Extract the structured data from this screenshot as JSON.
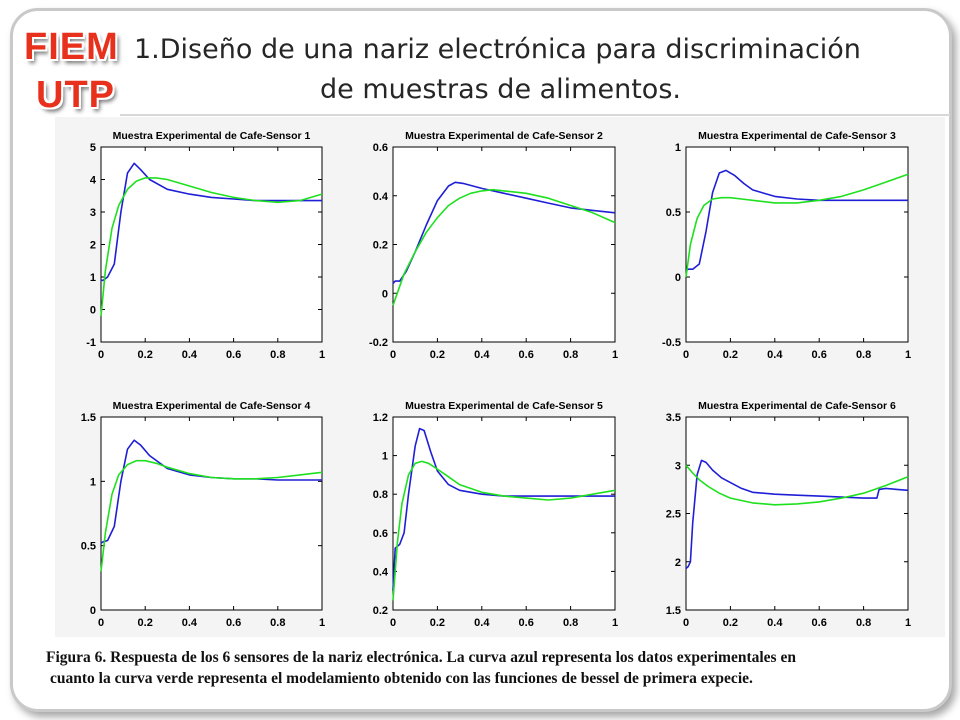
{
  "logo": {
    "line1": "FIEM",
    "line2": "UTP"
  },
  "title": {
    "line1": "1.Diseño de una nariz electrónica para discriminación",
    "line2": "de muestras de alimentos."
  },
  "caption": {
    "line1": "Figura 6. Respuesta de los 6 sensores de la nariz electrónica. La curva  azul representa los datos experimentales en",
    "line2": "cuanto la curva verde representa el modelamiento obtenido con las funciones de bessel de primera expecie."
  },
  "colors": {
    "experimental": "#1f1fd6",
    "model": "#1fe01f",
    "title_logo": "#e8311d"
  },
  "chart_data": [
    {
      "type": "line",
      "title": "Muestra Experimental de Cafe-Sensor 1",
      "xlim": [
        0,
        1
      ],
      "ylim": [
        -1,
        5
      ],
      "xticks": [
        "0",
        "0.2",
        "0.4",
        "0.6",
        "0.8",
        "1"
      ],
      "yticks": [
        "-1",
        "0",
        "1",
        "2",
        "3",
        "4",
        "5"
      ],
      "series": [
        {
          "color": "blue",
          "x": [
            0,
            0.01,
            0.03,
            0.06,
            0.09,
            0.12,
            0.15,
            0.18,
            0.22,
            0.3,
            0.4,
            0.5,
            0.6,
            0.7,
            0.8,
            0.9,
            1.0
          ],
          "y": [
            0.9,
            0.9,
            1.0,
            1.4,
            3.0,
            4.2,
            4.5,
            4.3,
            4.0,
            3.7,
            3.55,
            3.45,
            3.4,
            3.35,
            3.35,
            3.35,
            3.35
          ]
        },
        {
          "color": "green",
          "x": [
            0,
            0.02,
            0.05,
            0.08,
            0.12,
            0.16,
            0.2,
            0.25,
            0.3,
            0.4,
            0.5,
            0.6,
            0.7,
            0.8,
            0.9,
            1.0
          ],
          "y": [
            -0.2,
            1.2,
            2.5,
            3.2,
            3.7,
            3.95,
            4.05,
            4.05,
            4.0,
            3.8,
            3.6,
            3.45,
            3.35,
            3.3,
            3.35,
            3.55
          ]
        }
      ]
    },
    {
      "type": "line",
      "title": "Muestra Experimental de Cafe-Sensor 2",
      "xlim": [
        0,
        1
      ],
      "ylim": [
        -0.2,
        0.6
      ],
      "xticks": [
        "0",
        "0.2",
        "0.4",
        "0.6",
        "0.8",
        "1"
      ],
      "yticks": [
        "-0.2",
        "0",
        "0.2",
        "0.4",
        "0.6"
      ],
      "series": [
        {
          "color": "blue",
          "x": [
            0,
            0.01,
            0.03,
            0.06,
            0.1,
            0.15,
            0.2,
            0.25,
            0.28,
            0.32,
            0.4,
            0.5,
            0.6,
            0.7,
            0.8,
            0.9,
            1.0
          ],
          "y": [
            0.04,
            0.05,
            0.05,
            0.09,
            0.17,
            0.28,
            0.38,
            0.44,
            0.455,
            0.45,
            0.43,
            0.41,
            0.39,
            0.37,
            0.35,
            0.34,
            0.33
          ]
        },
        {
          "color": "green",
          "x": [
            0,
            0.05,
            0.1,
            0.15,
            0.2,
            0.25,
            0.3,
            0.35,
            0.4,
            0.45,
            0.5,
            0.6,
            0.7,
            0.8,
            0.9,
            1.0
          ],
          "y": [
            -0.05,
            0.08,
            0.17,
            0.25,
            0.31,
            0.36,
            0.39,
            0.41,
            0.42,
            0.425,
            0.42,
            0.41,
            0.39,
            0.36,
            0.33,
            0.29
          ]
        }
      ]
    },
    {
      "type": "line",
      "title": "Muestra Experimental de Cafe-Sensor 3",
      "xlim": [
        0,
        1
      ],
      "ylim": [
        -0.5,
        1
      ],
      "xticks": [
        "0",
        "0.2",
        "0.4",
        "0.6",
        "0.8",
        "1"
      ],
      "yticks": [
        "-0.5",
        "0",
        "0.5",
        "1"
      ],
      "series": [
        {
          "color": "blue",
          "x": [
            0,
            0.01,
            0.03,
            0.06,
            0.09,
            0.12,
            0.15,
            0.18,
            0.22,
            0.26,
            0.3,
            0.4,
            0.5,
            0.6,
            0.7,
            0.8,
            0.9,
            1.0
          ],
          "y": [
            0.05,
            0.06,
            0.06,
            0.1,
            0.35,
            0.65,
            0.8,
            0.82,
            0.78,
            0.72,
            0.67,
            0.62,
            0.6,
            0.59,
            0.59,
            0.59,
            0.59,
            0.59
          ]
        },
        {
          "color": "green",
          "x": [
            0,
            0.02,
            0.05,
            0.08,
            0.12,
            0.16,
            0.2,
            0.25,
            0.3,
            0.4,
            0.5,
            0.6,
            0.7,
            0.8,
            0.9,
            1.0
          ],
          "y": [
            0.0,
            0.25,
            0.45,
            0.55,
            0.6,
            0.61,
            0.61,
            0.6,
            0.59,
            0.57,
            0.57,
            0.59,
            0.62,
            0.67,
            0.73,
            0.79
          ]
        }
      ]
    },
    {
      "type": "line",
      "title": "Muestra Experimental de Cafe-Sensor 4",
      "xlim": [
        0,
        1
      ],
      "ylim": [
        0,
        1.5
      ],
      "xticks": [
        "0",
        "0.2",
        "0.4",
        "0.6",
        "0.8",
        "1"
      ],
      "yticks": [
        "0",
        "0.5",
        "1",
        "1.5"
      ],
      "series": [
        {
          "color": "blue",
          "x": [
            0,
            0.01,
            0.03,
            0.06,
            0.09,
            0.12,
            0.15,
            0.18,
            0.22,
            0.3,
            0.4,
            0.5,
            0.6,
            0.7,
            0.8,
            0.9,
            1.0
          ],
          "y": [
            0.52,
            0.53,
            0.54,
            0.65,
            1.0,
            1.25,
            1.32,
            1.28,
            1.2,
            1.1,
            1.05,
            1.03,
            1.02,
            1.02,
            1.01,
            1.01,
            1.01
          ]
        },
        {
          "color": "green",
          "x": [
            0,
            0.02,
            0.05,
            0.08,
            0.12,
            0.16,
            0.2,
            0.25,
            0.3,
            0.4,
            0.5,
            0.6,
            0.7,
            0.8,
            0.9,
            1.0
          ],
          "y": [
            0.3,
            0.6,
            0.9,
            1.05,
            1.13,
            1.16,
            1.16,
            1.14,
            1.11,
            1.06,
            1.03,
            1.02,
            1.02,
            1.03,
            1.05,
            1.07
          ]
        }
      ]
    },
    {
      "type": "line",
      "title": "Muestra Experimental de Cafe-Sensor 5",
      "xlim": [
        0,
        1
      ],
      "ylim": [
        0.2,
        1.2
      ],
      "xticks": [
        "0",
        "0.2",
        "0.4",
        "0.6",
        "0.8",
        "1"
      ],
      "yticks": [
        "0.2",
        "0.4",
        "0.6",
        "0.8",
        "1",
        "1.2"
      ],
      "series": [
        {
          "color": "blue",
          "x": [
            0,
            0.01,
            0.03,
            0.05,
            0.07,
            0.1,
            0.12,
            0.14,
            0.17,
            0.2,
            0.25,
            0.3,
            0.4,
            0.5,
            0.6,
            0.7,
            0.8,
            0.9,
            1.0
          ],
          "y": [
            0.3,
            0.52,
            0.54,
            0.6,
            0.8,
            1.05,
            1.14,
            1.13,
            1.02,
            0.92,
            0.85,
            0.82,
            0.8,
            0.79,
            0.79,
            0.79,
            0.79,
            0.79,
            0.79
          ]
        },
        {
          "color": "green",
          "x": [
            0,
            0.02,
            0.04,
            0.07,
            0.1,
            0.13,
            0.16,
            0.2,
            0.25,
            0.3,
            0.4,
            0.5,
            0.6,
            0.7,
            0.8,
            0.9,
            1.0
          ],
          "y": [
            0.25,
            0.55,
            0.75,
            0.9,
            0.96,
            0.97,
            0.96,
            0.93,
            0.89,
            0.85,
            0.81,
            0.79,
            0.78,
            0.77,
            0.78,
            0.8,
            0.82
          ]
        }
      ]
    },
    {
      "type": "line",
      "title": "Muestra Experimental de Cafe-Sensor 6",
      "xlim": [
        0,
        1
      ],
      "ylim": [
        1.5,
        3.5
      ],
      "xticks": [
        "0",
        "0.2",
        "0.4",
        "0.6",
        "0.8",
        "1"
      ],
      "yticks": [
        "1.5",
        "2",
        "2.5",
        "3",
        "3.5"
      ],
      "series": [
        {
          "color": "blue",
          "x": [
            0,
            0.01,
            0.02,
            0.03,
            0.05,
            0.07,
            0.09,
            0.12,
            0.16,
            0.2,
            0.25,
            0.3,
            0.4,
            0.5,
            0.6,
            0.7,
            0.8,
            0.86,
            0.87,
            0.9,
            0.95,
            1.0
          ],
          "y": [
            1.93,
            1.95,
            2.0,
            2.4,
            2.9,
            3.05,
            3.03,
            2.95,
            2.87,
            2.82,
            2.76,
            2.72,
            2.7,
            2.69,
            2.68,
            2.67,
            2.66,
            2.66,
            2.75,
            2.76,
            2.75,
            2.74
          ]
        },
        {
          "color": "green",
          "x": [
            0,
            0.03,
            0.06,
            0.1,
            0.15,
            0.2,
            0.3,
            0.4,
            0.5,
            0.6,
            0.7,
            0.8,
            0.9,
            1.0
          ],
          "y": [
            3.0,
            2.92,
            2.85,
            2.78,
            2.71,
            2.66,
            2.61,
            2.59,
            2.6,
            2.62,
            2.66,
            2.71,
            2.79,
            2.88
          ]
        }
      ]
    }
  ]
}
